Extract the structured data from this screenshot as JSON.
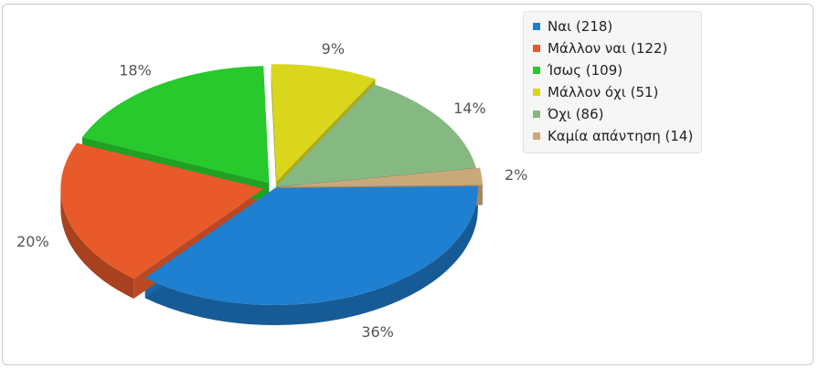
{
  "chart_data": {
    "type": "pie",
    "title": "",
    "slices": [
      {
        "label": "Ναι (218)",
        "value": 218,
        "percent_label": "36%",
        "color": "#1f7fd0"
      },
      {
        "label": "Μάλλον ναι (122)",
        "value": 122,
        "percent_label": "20%",
        "color": "#e85a2a"
      },
      {
        "label": "Ίσως (109)",
        "value": 109,
        "percent_label": "18%",
        "color": "#27c92c"
      },
      {
        "label": "Μάλλον όχι (51)",
        "value": 51,
        "percent_label": "9%",
        "color": "#d9d61c"
      },
      {
        "label": "Όχι (86)",
        "value": 86,
        "percent_label": "14%",
        "color": "#86b882"
      },
      {
        "label": "Καμία απάντηση (14)",
        "value": 14,
        "percent_label": "2%",
        "color": "#c9a97a"
      }
    ],
    "legend_position": "top-right",
    "style": "3d-exploded"
  }
}
